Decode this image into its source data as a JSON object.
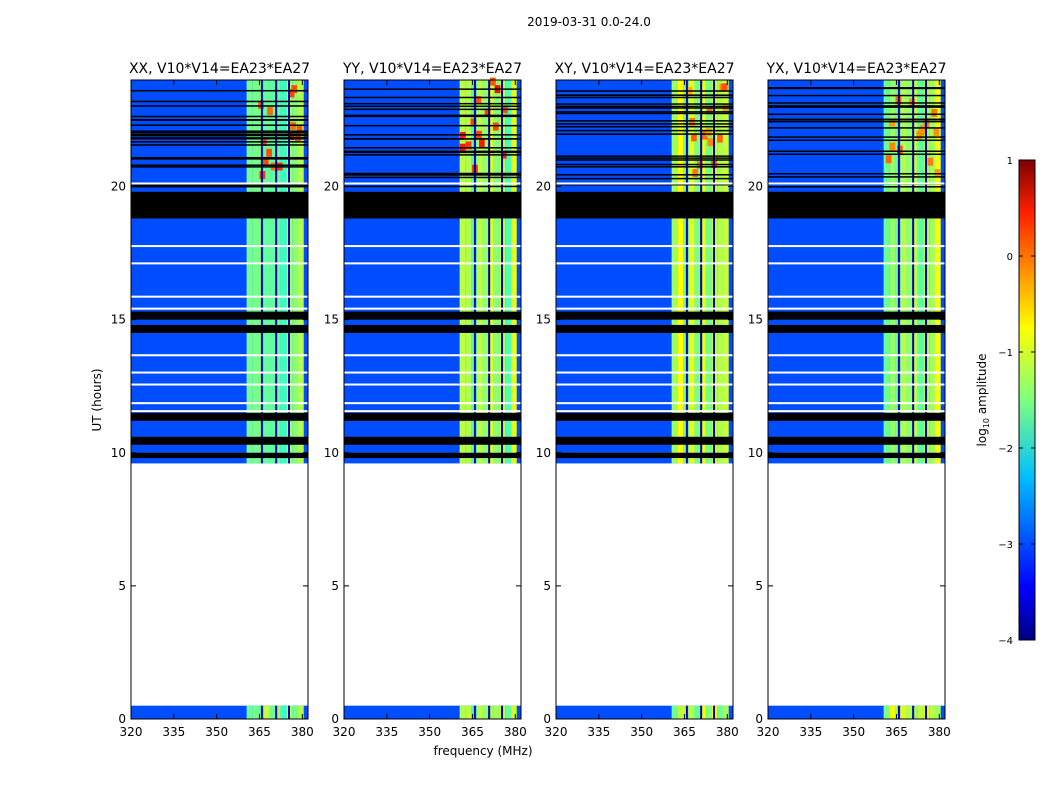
{
  "chart_data": {
    "type": "heatmap",
    "suptitle": "2019-03-31 0.0-24.0",
    "xlabel": "frequency (MHz)",
    "ylabel": "UT (hours)",
    "xlim": [
      320,
      382
    ],
    "ylim": [
      0,
      24
    ],
    "x_ticks": [
      320,
      335,
      350,
      365,
      380
    ],
    "y_ticks": [
      0,
      5,
      10,
      15,
      20
    ],
    "panels": [
      {
        "title": "XX, V10*V14=EA23*EA27",
        "band_level": -1.6,
        "peak_level": 0.2
      },
      {
        "title": "YY, V10*V14=EA23*EA27",
        "band_level": -1.4,
        "peak_level": 0.4
      },
      {
        "title": "XY, V10*V14=EA23*EA27",
        "band_level": -1.3,
        "peak_level": 0.0
      },
      {
        "title": "YX, V10*V14=EA23*EA27",
        "band_level": -1.3,
        "peak_level": 0.0
      }
    ],
    "time_coverage_hours": [
      [
        0.0,
        0.5
      ],
      [
        9.6,
        24.0
      ]
    ],
    "bright_band_MHz": [
      360.5,
      380.5
    ],
    "background_level": -3.0,
    "flagged_hours": [
      [
        18.8,
        19.8
      ],
      [
        15.0,
        15.3
      ],
      [
        14.5,
        14.8
      ],
      [
        11.2,
        11.5
      ],
      [
        10.3,
        10.6
      ],
      [
        9.8,
        10.0
      ]
    ],
    "colorbar": {
      "label_prefix": "log",
      "label_subscript": "10",
      "label_suffix": " amplitude",
      "range": [
        -4,
        1
      ],
      "ticks": [
        1,
        0,
        -1,
        -2,
        -3,
        -4
      ],
      "tick_labels": [
        "1",
        "0",
        "−1",
        "−2",
        "−3",
        "−4"
      ],
      "colormap": "jet"
    }
  }
}
